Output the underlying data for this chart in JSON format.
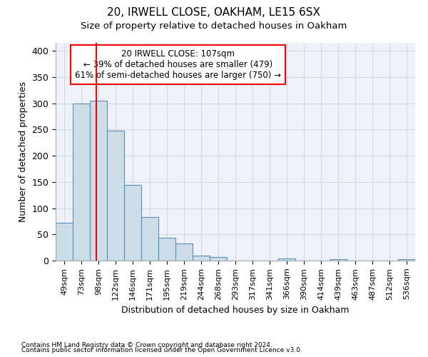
{
  "title1": "20, IRWELL CLOSE, OAKHAM, LE15 6SX",
  "title2": "Size of property relative to detached houses in Oakham",
  "xlabel": "Distribution of detached houses by size in Oakham",
  "ylabel": "Number of detached properties",
  "footnote1": "Contains HM Land Registry data © Crown copyright and database right 2024.",
  "footnote2": "Contains public sector information licensed under the Open Government Licence v3.0.",
  "bar_labels": [
    "49sqm",
    "73sqm",
    "98sqm",
    "122sqm",
    "146sqm",
    "171sqm",
    "195sqm",
    "219sqm",
    "244sqm",
    "268sqm",
    "293sqm",
    "317sqm",
    "341sqm",
    "366sqm",
    "390sqm",
    "414sqm",
    "439sqm",
    "463sqm",
    "487sqm",
    "512sqm",
    "536sqm"
  ],
  "bar_values": [
    72,
    300,
    305,
    248,
    144,
    83,
    44,
    32,
    10,
    7,
    0,
    0,
    0,
    4,
    0,
    0,
    3,
    0,
    0,
    0,
    3
  ],
  "bar_color": "#ccdde8",
  "bar_edge_color": "#5b8db8",
  "annotation_text1": "20 IRWELL CLOSE: 107sqm",
  "annotation_text2": "← 39% of detached houses are smaller (479)",
  "annotation_text3": "61% of semi-detached houses are larger (750) →",
  "annotation_box_color": "white",
  "annotation_box_edge": "red",
  "red_line_color": "red",
  "ylim": [
    0,
    415
  ],
  "grid_color": "#d0d8e8",
  "bg_color": "#eef2f8"
}
